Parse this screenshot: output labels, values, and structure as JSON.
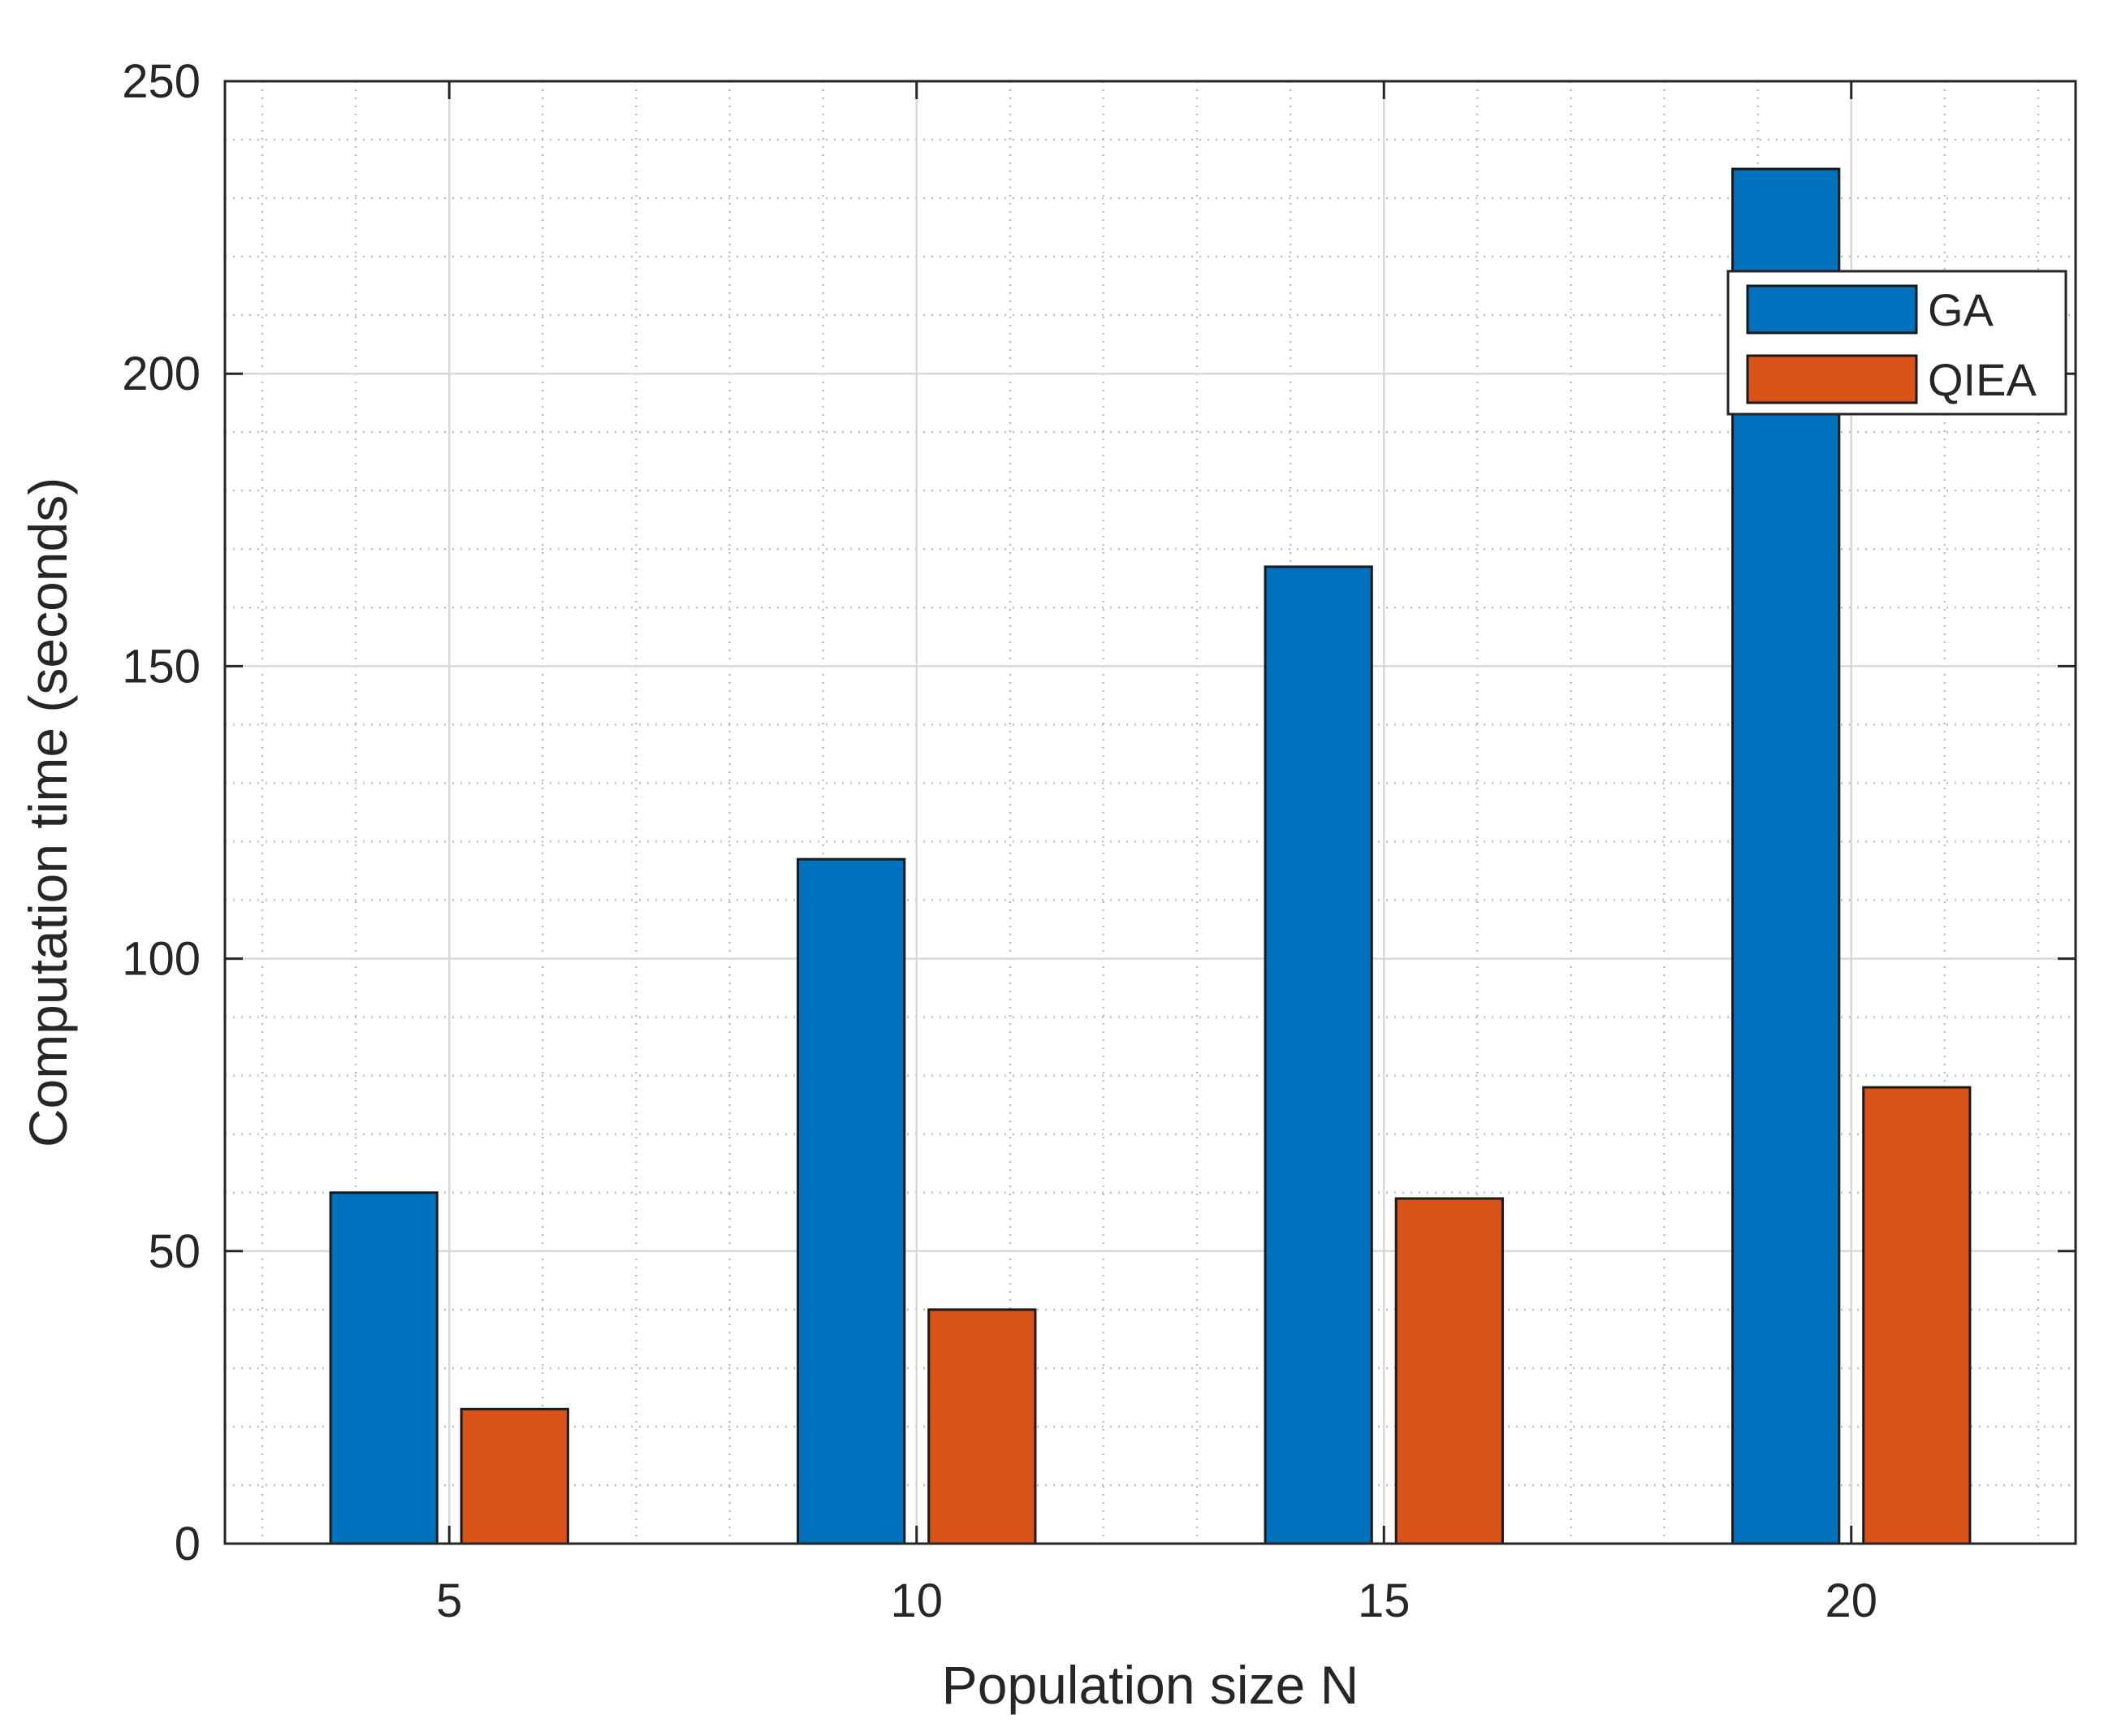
{
  "chart_data": {
    "type": "bar",
    "title": "",
    "xlabel": "Population size N",
    "ylabel": "Computation time (seconds)",
    "categories": [
      "5",
      "10",
      "15",
      "20"
    ],
    "x": [
      5,
      10,
      15,
      20
    ],
    "xlim": [
      2.6,
      22.4
    ],
    "ylim": [
      0,
      250
    ],
    "yticks": [
      "0",
      "50",
      "100",
      "150",
      "200",
      "250"
    ],
    "grid": "major and minor",
    "legend_position": "top-right",
    "series": [
      {
        "name": "GA",
        "color": "#0072BD",
        "values": [
          60,
          117,
          167,
          235
        ]
      },
      {
        "name": "QIEA",
        "color": "#D95319",
        "values": [
          23,
          40,
          59,
          78
        ]
      }
    ]
  }
}
